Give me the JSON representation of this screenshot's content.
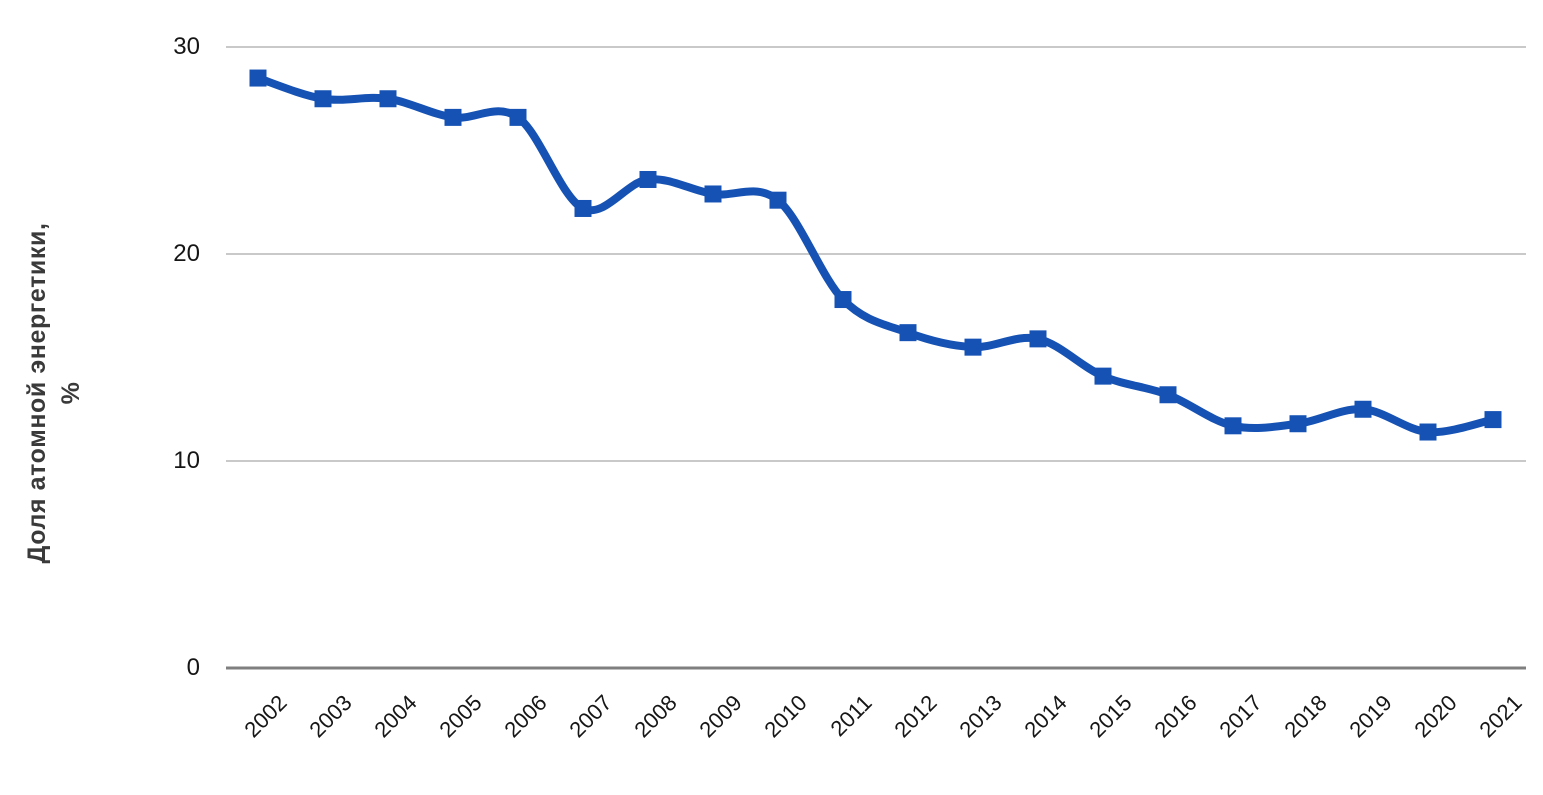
{
  "chart_data": {
    "type": "line",
    "title": "",
    "categories": [
      "2002",
      "2003",
      "2004",
      "2005",
      "2006",
      "2007",
      "2008",
      "2009",
      "2010",
      "2011",
      "2012",
      "2013",
      "2014",
      "2015",
      "2016",
      "2017",
      "2018",
      "2019",
      "2020",
      "2021"
    ],
    "values": [
      28.5,
      27.5,
      27.5,
      26.6,
      26.6,
      22.2,
      23.6,
      22.9,
      22.6,
      17.8,
      16.2,
      15.5,
      15.9,
      14.1,
      13.2,
      11.7,
      11.8,
      12.5,
      11.4,
      12.0
    ],
    "xlabel": "",
    "ylabel": "Доля атомной энергетики, %",
    "ylabel_lines": [
      "Доля атомной энергетики,",
      "%"
    ],
    "yticks": [
      0,
      10,
      20,
      30
    ],
    "ylim": [
      0,
      30
    ],
    "grid": "horizontal",
    "legend_position": "none",
    "line_style": "smooth",
    "marker": "square",
    "colors": {
      "line": "#1552b4",
      "marker": "#1552b4",
      "gridline": "#c9c9c9",
      "axis_line": "#7f7f7f",
      "tick_text": "#161616",
      "axis_title_text": "#3a3a3a",
      "background": "#ffffff"
    }
  }
}
